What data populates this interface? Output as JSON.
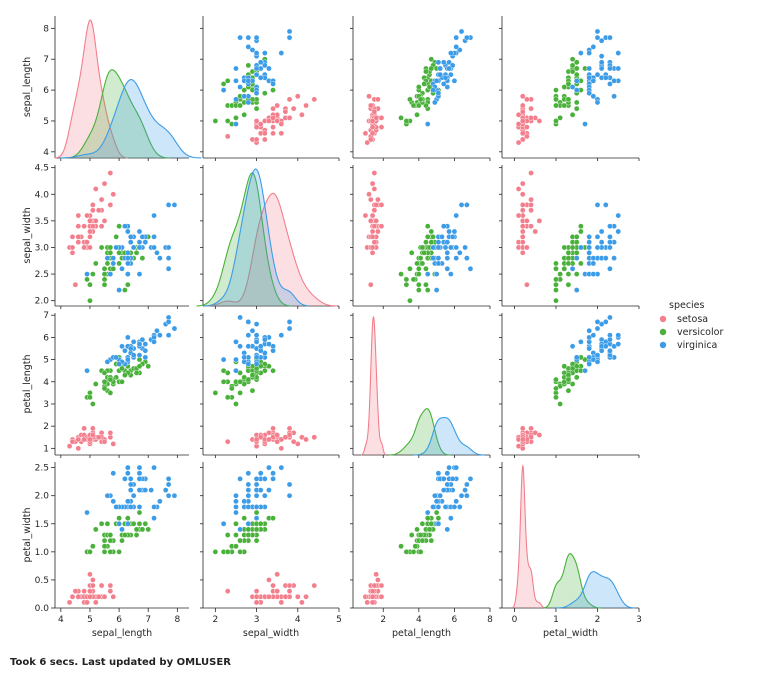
{
  "footer": "Took 6 secs. Last updated by OMLUSER",
  "chart_data": {
    "type": "pairplot",
    "title": "",
    "legend": {
      "title": "species",
      "placement": "right",
      "entries": [
        "setosa",
        "versicolor",
        "virginica"
      ]
    },
    "colors": {
      "setosa": "#f37f8d",
      "versicolor": "#49b13a",
      "virginica": "#3c9ce7"
    },
    "variables": [
      "sepal_length",
      "sepal_width",
      "petal_length",
      "petal_width"
    ],
    "axes": {
      "sepal_length": {
        "range": [
          3.8,
          8.4
        ],
        "ticks": [
          4,
          5,
          6,
          7,
          8
        ],
        "tick_labels": [
          "4",
          "5",
          "6",
          "7",
          "8"
        ]
      },
      "sepal_width": {
        "range": [
          1.7,
          5.0
        ],
        "ticks": [
          2,
          3,
          4,
          5
        ],
        "tick_labels": [
          "2",
          "3",
          "4",
          "5"
        ],
        "y_ticks": [
          2.0,
          2.5,
          3.0,
          3.5,
          4.0,
          4.5
        ],
        "y_tick_labels": [
          "2.0",
          "2.5",
          "3.0",
          "3.5",
          "4.0",
          "4.5"
        ],
        "y_range": [
          1.9,
          4.55
        ]
      },
      "petal_length": {
        "range": [
          0.3,
          8.0
        ],
        "ticks": [
          2,
          4,
          6,
          8
        ],
        "tick_labels": [
          "2",
          "4",
          "6",
          "8"
        ],
        "y_ticks": [
          1,
          2,
          3,
          4,
          5,
          6,
          7
        ],
        "y_tick_labels": [
          "1",
          "2",
          "3",
          "4",
          "5",
          "6",
          "7"
        ],
        "y_range": [
          0.7,
          7.1
        ]
      },
      "petal_width": {
        "range": [
          -0.3,
          3.0
        ],
        "ticks": [
          0,
          1,
          2,
          3
        ],
        "tick_labels": [
          "0",
          "1",
          "2",
          "3"
        ],
        "y_ticks": [
          0.0,
          0.5,
          1.0,
          1.5,
          2.0,
          2.5
        ],
        "y_tick_labels": [
          "0.0",
          "0.5",
          "1.0",
          "1.5",
          "2.0",
          "2.5"
        ],
        "y_range": [
          0.0,
          2.6
        ]
      }
    },
    "series": [
      {
        "name": "setosa",
        "points": [
          [
            5.1,
            3.5,
            1.4,
            0.2
          ],
          [
            4.9,
            3.0,
            1.4,
            0.2
          ],
          [
            4.7,
            3.2,
            1.3,
            0.2
          ],
          [
            4.6,
            3.1,
            1.5,
            0.2
          ],
          [
            5.0,
            3.6,
            1.4,
            0.2
          ],
          [
            5.4,
            3.9,
            1.7,
            0.4
          ],
          [
            4.6,
            3.4,
            1.4,
            0.3
          ],
          [
            5.0,
            3.4,
            1.5,
            0.2
          ],
          [
            4.4,
            2.9,
            1.4,
            0.2
          ],
          [
            4.9,
            3.1,
            1.5,
            0.1
          ],
          [
            5.4,
            3.7,
            1.5,
            0.2
          ],
          [
            4.8,
            3.4,
            1.6,
            0.2
          ],
          [
            4.8,
            3.0,
            1.4,
            0.1
          ],
          [
            4.3,
            3.0,
            1.1,
            0.1
          ],
          [
            5.8,
            4.0,
            1.2,
            0.2
          ],
          [
            5.7,
            4.4,
            1.5,
            0.4
          ],
          [
            5.4,
            3.9,
            1.3,
            0.4
          ],
          [
            5.1,
            3.5,
            1.4,
            0.3
          ],
          [
            5.7,
            3.8,
            1.7,
            0.3
          ],
          [
            5.1,
            3.8,
            1.5,
            0.3
          ],
          [
            5.4,
            3.4,
            1.7,
            0.2
          ],
          [
            5.1,
            3.7,
            1.5,
            0.4
          ],
          [
            4.6,
            3.6,
            1.0,
            0.2
          ],
          [
            5.1,
            3.3,
            1.7,
            0.5
          ],
          [
            4.8,
            3.4,
            1.9,
            0.2
          ],
          [
            5.0,
            3.0,
            1.6,
            0.2
          ],
          [
            5.0,
            3.4,
            1.6,
            0.4
          ],
          [
            5.2,
            3.5,
            1.5,
            0.2
          ],
          [
            5.2,
            3.4,
            1.4,
            0.2
          ],
          [
            4.7,
            3.2,
            1.6,
            0.2
          ],
          [
            4.8,
            3.1,
            1.6,
            0.2
          ],
          [
            5.4,
            3.4,
            1.5,
            0.4
          ],
          [
            5.2,
            4.1,
            1.5,
            0.1
          ],
          [
            5.5,
            4.2,
            1.4,
            0.2
          ],
          [
            4.9,
            3.1,
            1.5,
            0.2
          ],
          [
            5.0,
            3.2,
            1.2,
            0.2
          ],
          [
            5.5,
            3.5,
            1.3,
            0.2
          ],
          [
            4.9,
            3.6,
            1.4,
            0.1
          ],
          [
            4.4,
            3.0,
            1.3,
            0.2
          ],
          [
            5.1,
            3.4,
            1.5,
            0.2
          ],
          [
            5.0,
            3.5,
            1.3,
            0.3
          ],
          [
            4.5,
            2.3,
            1.3,
            0.3
          ],
          [
            4.4,
            3.2,
            1.3,
            0.2
          ],
          [
            5.0,
            3.5,
            1.6,
            0.6
          ],
          [
            5.1,
            3.8,
            1.9,
            0.4
          ],
          [
            4.8,
            3.0,
            1.4,
            0.3
          ],
          [
            5.1,
            3.8,
            1.6,
            0.2
          ],
          [
            4.6,
            3.2,
            1.4,
            0.2
          ],
          [
            5.3,
            3.7,
            1.5,
            0.2
          ],
          [
            5.0,
            3.3,
            1.4,
            0.2
          ]
        ]
      },
      {
        "name": "versicolor",
        "points": [
          [
            7.0,
            3.2,
            4.7,
            1.4
          ],
          [
            6.4,
            3.2,
            4.5,
            1.5
          ],
          [
            6.9,
            3.1,
            4.9,
            1.5
          ],
          [
            5.5,
            2.3,
            4.0,
            1.3
          ],
          [
            6.5,
            2.8,
            4.6,
            1.5
          ],
          [
            5.7,
            2.8,
            4.5,
            1.3
          ],
          [
            6.3,
            3.3,
            4.7,
            1.6
          ],
          [
            4.9,
            2.4,
            3.3,
            1.0
          ],
          [
            6.6,
            2.9,
            4.6,
            1.3
          ],
          [
            5.2,
            2.7,
            3.9,
            1.4
          ],
          [
            5.0,
            2.0,
            3.5,
            1.0
          ],
          [
            5.9,
            3.0,
            4.2,
            1.5
          ],
          [
            6.0,
            2.2,
            4.0,
            1.0
          ],
          [
            6.1,
            2.9,
            4.7,
            1.4
          ],
          [
            5.6,
            2.9,
            3.6,
            1.3
          ],
          [
            6.7,
            3.1,
            4.4,
            1.4
          ],
          [
            5.6,
            3.0,
            4.5,
            1.5
          ],
          [
            5.8,
            2.7,
            4.1,
            1.0
          ],
          [
            6.2,
            2.2,
            4.5,
            1.5
          ],
          [
            5.6,
            2.5,
            3.9,
            1.1
          ],
          [
            5.9,
            3.2,
            4.8,
            1.8
          ],
          [
            6.1,
            2.8,
            4.0,
            1.3
          ],
          [
            6.3,
            2.5,
            4.9,
            1.5
          ],
          [
            6.1,
            2.8,
            4.7,
            1.2
          ],
          [
            6.4,
            2.9,
            4.3,
            1.3
          ],
          [
            6.6,
            3.0,
            4.4,
            1.4
          ],
          [
            6.8,
            2.8,
            4.8,
            1.4
          ],
          [
            6.7,
            3.0,
            5.0,
            1.7
          ],
          [
            6.0,
            2.9,
            4.5,
            1.5
          ],
          [
            5.7,
            2.6,
            3.5,
            1.0
          ],
          [
            5.5,
            2.4,
            3.8,
            1.1
          ],
          [
            5.5,
            2.4,
            3.7,
            1.0
          ],
          [
            5.8,
            2.7,
            3.9,
            1.2
          ],
          [
            6.0,
            2.7,
            5.1,
            1.6
          ],
          [
            5.4,
            3.0,
            4.5,
            1.5
          ],
          [
            6.0,
            3.4,
            4.5,
            1.6
          ],
          [
            6.7,
            3.1,
            4.7,
            1.5
          ],
          [
            6.3,
            2.3,
            4.4,
            1.3
          ],
          [
            5.6,
            3.0,
            4.1,
            1.3
          ],
          [
            5.5,
            2.5,
            4.0,
            1.3
          ],
          [
            5.5,
            2.6,
            4.4,
            1.2
          ],
          [
            6.1,
            3.0,
            4.6,
            1.4
          ],
          [
            5.8,
            2.6,
            4.0,
            1.2
          ],
          [
            5.0,
            2.3,
            3.3,
            1.0
          ],
          [
            5.6,
            2.7,
            4.2,
            1.3
          ],
          [
            5.7,
            3.0,
            4.2,
            1.2
          ],
          [
            5.7,
            2.9,
            4.2,
            1.3
          ],
          [
            6.2,
            2.9,
            4.3,
            1.3
          ],
          [
            5.1,
            2.5,
            3.0,
            1.1
          ],
          [
            5.7,
            2.8,
            4.1,
            1.3
          ]
        ]
      },
      {
        "name": "virginica",
        "points": [
          [
            6.3,
            3.3,
            6.0,
            2.5
          ],
          [
            5.8,
            2.7,
            5.1,
            1.9
          ],
          [
            7.1,
            3.0,
            5.9,
            2.1
          ],
          [
            6.3,
            2.9,
            5.6,
            1.8
          ],
          [
            6.5,
            3.0,
            5.8,
            2.2
          ],
          [
            7.6,
            3.0,
            6.6,
            2.1
          ],
          [
            4.9,
            2.5,
            4.5,
            1.7
          ],
          [
            7.3,
            2.9,
            6.3,
            1.8
          ],
          [
            6.7,
            2.5,
            5.8,
            1.8
          ],
          [
            7.2,
            3.6,
            6.1,
            2.5
          ],
          [
            6.5,
            3.2,
            5.1,
            2.0
          ],
          [
            6.4,
            2.7,
            5.3,
            1.9
          ],
          [
            6.8,
            3.0,
            5.5,
            2.1
          ],
          [
            5.7,
            2.5,
            5.0,
            2.0
          ],
          [
            5.8,
            2.8,
            5.1,
            2.4
          ],
          [
            6.4,
            3.2,
            5.3,
            2.3
          ],
          [
            6.5,
            3.0,
            5.5,
            1.8
          ],
          [
            7.7,
            3.8,
            6.7,
            2.2
          ],
          [
            7.7,
            2.6,
            6.9,
            2.3
          ],
          [
            6.0,
            2.2,
            5.0,
            1.5
          ],
          [
            6.9,
            3.2,
            5.7,
            2.3
          ],
          [
            5.6,
            2.8,
            4.9,
            2.0
          ],
          [
            7.7,
            2.8,
            6.7,
            2.0
          ],
          [
            6.3,
            2.7,
            4.9,
            1.8
          ],
          [
            6.7,
            3.3,
            5.7,
            2.1
          ],
          [
            7.2,
            3.2,
            6.0,
            1.8
          ],
          [
            6.2,
            2.8,
            4.8,
            1.8
          ],
          [
            6.1,
            3.0,
            4.9,
            1.8
          ],
          [
            6.4,
            2.8,
            5.6,
            2.1
          ],
          [
            7.2,
            3.0,
            5.8,
            1.6
          ],
          [
            7.4,
            2.8,
            6.1,
            1.9
          ],
          [
            7.9,
            3.8,
            6.4,
            2.0
          ],
          [
            6.4,
            2.8,
            5.6,
            2.2
          ],
          [
            6.3,
            2.8,
            5.1,
            1.5
          ],
          [
            6.1,
            2.6,
            5.6,
            1.4
          ],
          [
            7.7,
            3.0,
            6.1,
            2.3
          ],
          [
            6.3,
            3.4,
            5.6,
            2.4
          ],
          [
            6.4,
            3.1,
            5.5,
            1.8
          ],
          [
            6.0,
            3.0,
            4.8,
            1.8
          ],
          [
            6.9,
            3.1,
            5.4,
            2.1
          ],
          [
            6.7,
            3.1,
            5.6,
            2.4
          ],
          [
            6.9,
            3.1,
            5.1,
            2.3
          ],
          [
            5.8,
            2.7,
            5.1,
            1.9
          ],
          [
            6.8,
            3.2,
            5.9,
            2.3
          ],
          [
            6.7,
            3.3,
            5.7,
            2.5
          ],
          [
            6.7,
            3.0,
            5.2,
            2.3
          ],
          [
            6.3,
            2.5,
            5.0,
            1.9
          ],
          [
            6.5,
            3.0,
            5.2,
            2.0
          ],
          [
            6.2,
            3.4,
            5.4,
            2.3
          ],
          [
            5.9,
            3.0,
            5.1,
            1.8
          ]
        ]
      }
    ]
  }
}
